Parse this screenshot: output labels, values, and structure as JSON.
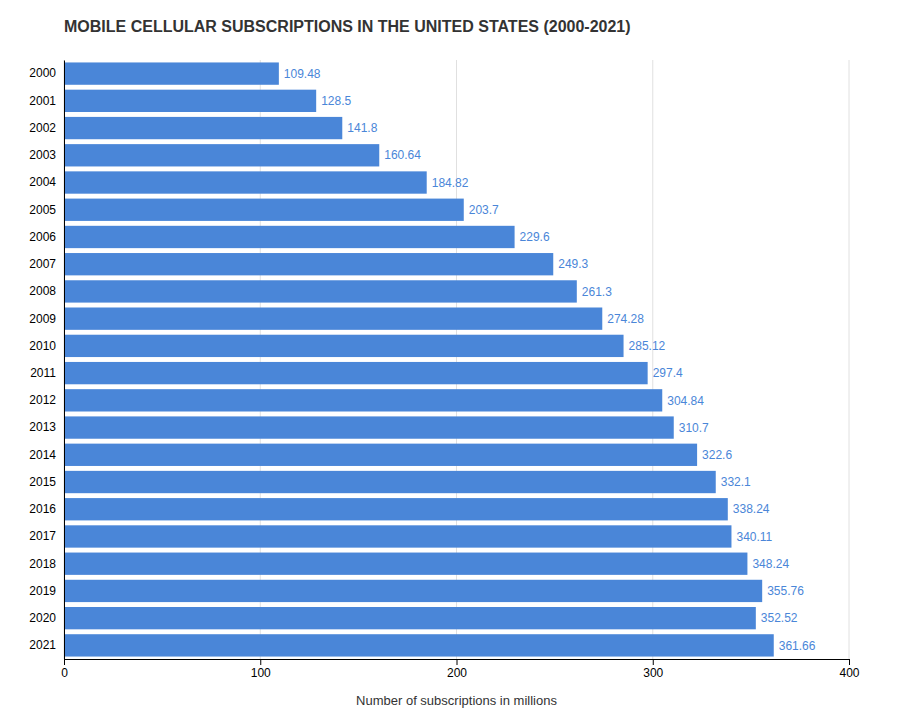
{
  "chart_data": {
    "type": "bar",
    "orientation": "horizontal",
    "title": "MOBILE CELLULAR SUBSCRIPTIONS IN THE UNITED STATES (2000-2021)",
    "xlabel": "Number of subscriptions in millions",
    "categories": [
      "2000",
      "2001",
      "2002",
      "2003",
      "2004",
      "2005",
      "2006",
      "2007",
      "2008",
      "2009",
      "2010",
      "2011",
      "2012",
      "2013",
      "2014",
      "2015",
      "2016",
      "2017",
      "2018",
      "2019",
      "2020",
      "2021"
    ],
    "values": [
      109.48,
      128.5,
      141.8,
      160.64,
      184.82,
      203.7,
      229.6,
      249.3,
      261.3,
      274.28,
      285.12,
      297.4,
      304.84,
      310.7,
      322.6,
      332.1,
      338.24,
      340.11,
      348.24,
      355.76,
      352.52,
      361.66
    ],
    "color": "#4a86d8",
    "xlim": [
      0,
      400
    ],
    "xticks": [
      0,
      100,
      200,
      300,
      400
    ],
    "grid": true,
    "data_labels": true
  }
}
